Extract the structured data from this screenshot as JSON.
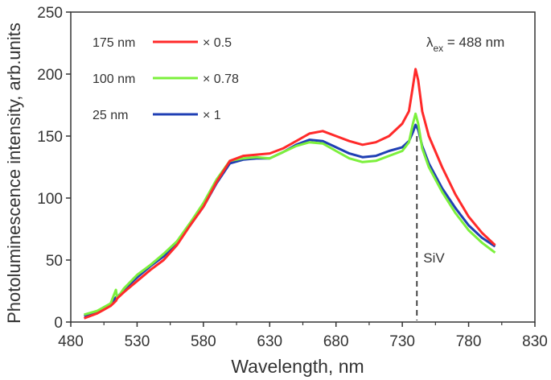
{
  "chart_data": {
    "type": "line",
    "title": "",
    "xlabel": "Wavelength, nm",
    "ylabel": "Photoluminescence  intensity, arb.units",
    "xlim": [
      480,
      830
    ],
    "ylim": [
      0,
      250
    ],
    "xticks": [
      480,
      530,
      580,
      630,
      680,
      730,
      780,
      830
    ],
    "yticks": [
      0,
      50,
      100,
      150,
      200,
      250
    ],
    "grid": false,
    "legend_placement": "top-left",
    "annotations": {
      "excitation_label": "λ",
      "excitation_sub": "ex",
      "excitation_value": " = 488 nm",
      "peak_label": "SiV",
      "peak_x": 741
    },
    "series": [
      {
        "name": "175 nm",
        "factor": "× 0.5",
        "color": "#ff2a2a",
        "x": [
          490,
          500,
          510,
          514,
          515,
          520,
          530,
          540,
          550,
          560,
          570,
          580,
          590,
          600,
          610,
          620,
          630,
          640,
          650,
          660,
          670,
          680,
          690,
          700,
          710,
          720,
          730,
          735,
          738,
          740,
          742,
          745,
          750,
          760,
          770,
          780,
          790,
          800
        ],
        "y": [
          3,
          7,
          13,
          17,
          19,
          24,
          33,
          42,
          50,
          62,
          78,
          93,
          113,
          130,
          134,
          135,
          136,
          140,
          146,
          152,
          154,
          150,
          146,
          143,
          145,
          150,
          160,
          170,
          190,
          204,
          195,
          170,
          150,
          125,
          103,
          85,
          72,
          62
        ]
      },
      {
        "name": "100 nm",
        "factor": "× 0.78",
        "color": "#7cf03c",
        "x": [
          490,
          500,
          510,
          514,
          515,
          520,
          530,
          540,
          550,
          560,
          570,
          580,
          590,
          600,
          610,
          620,
          630,
          640,
          650,
          660,
          670,
          680,
          690,
          700,
          710,
          720,
          730,
          735,
          738,
          740,
          742,
          745,
          750,
          760,
          770,
          780,
          790,
          800
        ],
        "y": [
          6,
          9,
          15,
          26,
          19,
          27,
          38,
          46,
          55,
          65,
          80,
          96,
          115,
          130,
          132,
          133,
          132,
          137,
          142,
          145,
          144,
          138,
          132,
          129,
          130,
          134,
          138,
          145,
          160,
          168,
          160,
          140,
          125,
          105,
          88,
          74,
          64,
          56
        ]
      },
      {
        "name": "25 nm",
        "factor": "× 1",
        "color": "#1f3fb4",
        "x": [
          490,
          500,
          510,
          514,
          515,
          520,
          530,
          540,
          550,
          560,
          570,
          580,
          590,
          600,
          610,
          620,
          630,
          640,
          650,
          660,
          670,
          680,
          690,
          700,
          710,
          720,
          730,
          735,
          738,
          740,
          742,
          745,
          750,
          760,
          770,
          780,
          790,
          800
        ],
        "y": [
          5,
          8,
          14,
          20,
          20,
          26,
          36,
          45,
          53,
          64,
          78,
          93,
          112,
          128,
          131,
          132,
          132,
          137,
          143,
          147,
          146,
          141,
          136,
          133,
          134,
          138,
          141,
          146,
          153,
          159,
          155,
          142,
          128,
          108,
          92,
          78,
          68,
          61
        ]
      }
    ]
  }
}
